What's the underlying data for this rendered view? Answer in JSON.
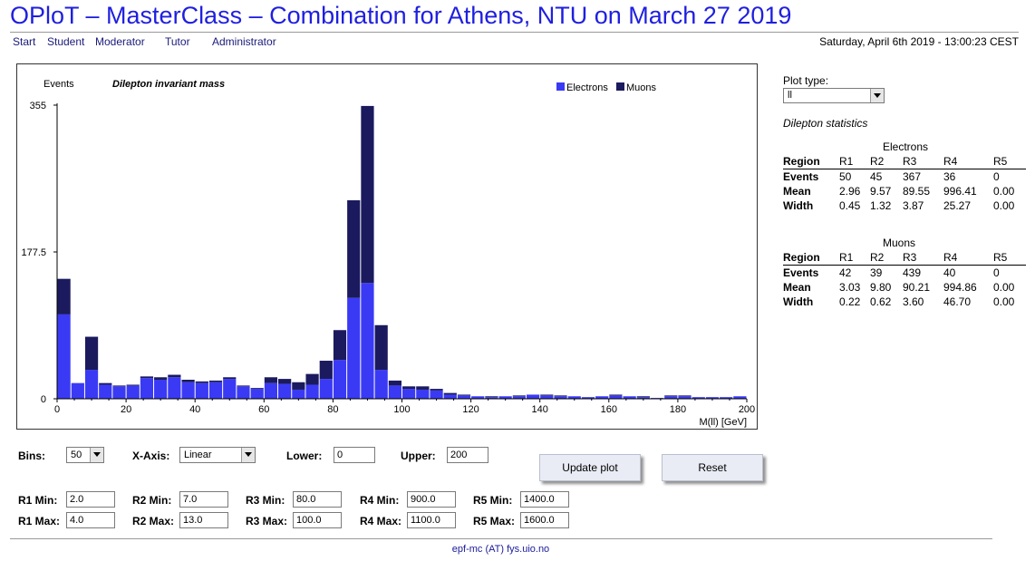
{
  "header": {
    "title": "OPloT – MasterClass – Combination for Athens, NTU on March 27 2019",
    "nav": [
      "Start",
      "Student",
      "Moderator",
      "Tutor",
      "Administrator"
    ],
    "datetime": "Saturday, April 6th 2019 - 13:00:23 CEST"
  },
  "chart_data": {
    "type": "bar",
    "stacked": true,
    "title": "Dilepton invariant mass",
    "ylabel": "Events",
    "xlabel": "M(ll) [GeV]",
    "x_bin_starts": [
      0,
      4,
      8,
      12,
      16,
      20,
      24,
      28,
      32,
      36,
      40,
      44,
      48,
      52,
      56,
      60,
      64,
      68,
      72,
      76,
      80,
      84,
      88,
      92,
      96,
      100,
      104,
      108,
      112,
      116,
      120,
      124,
      128,
      132,
      136,
      140,
      144,
      148,
      152,
      156,
      160,
      164,
      168,
      172,
      176,
      180,
      184,
      188,
      192,
      196
    ],
    "bin_width": 4,
    "xlim": [
      0,
      200
    ],
    "ylim": [
      0,
      355
    ],
    "x_ticks": [
      "0",
      "20",
      "40",
      "60",
      "80",
      "100",
      "120",
      "140",
      "160",
      "180",
      "200"
    ],
    "y_ticks": [
      "0",
      "177.5",
      "355"
    ],
    "legend_position": "top-right",
    "series": [
      {
        "name": "Electrons",
        "color": "#3a3af5",
        "values": [
          102,
          19,
          35,
          17,
          15,
          16,
          25,
          23,
          26,
          20,
          19,
          20,
          24,
          15,
          12,
          19,
          18,
          11,
          17,
          24,
          47,
          122,
          140,
          35,
          16,
          12,
          11,
          10,
          5,
          4,
          3,
          2,
          3,
          3,
          5,
          4,
          3,
          3,
          2,
          3,
          4,
          3,
          2,
          1,
          3,
          3,
          2,
          2,
          2,
          3
        ]
      },
      {
        "name": "Muons",
        "color": "#1b1a5e",
        "values": [
          43,
          0,
          40,
          2,
          1,
          1,
          2,
          3,
          3,
          3,
          2,
          2,
          2,
          1,
          1,
          7,
          6,
          9,
          13,
          22,
          36,
          118,
          214,
          54,
          6,
          3,
          4,
          2,
          2,
          1,
          0,
          1,
          0,
          1,
          0,
          1,
          1,
          0,
          0,
          0,
          1,
          0,
          1,
          0,
          1,
          1,
          0,
          0,
          0,
          0
        ]
      }
    ]
  },
  "plot_type": {
    "label": "Plot type:",
    "value": "ll"
  },
  "stats": {
    "heading": "Dilepton statistics",
    "header_row": [
      "Region",
      "R1",
      "R2",
      "R3",
      "R4",
      "R5"
    ],
    "electrons": {
      "caption": "Electrons",
      "rows": [
        [
          "Events",
          "50",
          "45",
          "367",
          "36",
          "0"
        ],
        [
          "Mean",
          "2.96",
          "9.57",
          "89.55",
          "996.41",
          "0.00"
        ],
        [
          "Width",
          "0.45",
          "1.32",
          "3.87",
          "25.27",
          "0.00"
        ]
      ]
    },
    "muons": {
      "caption": "Muons",
      "rows": [
        [
          "Events",
          "42",
          "39",
          "439",
          "40",
          "0"
        ],
        [
          "Mean",
          "3.03",
          "9.80",
          "90.21",
          "994.86",
          "0.00"
        ],
        [
          "Width",
          "0.22",
          "0.62",
          "3.60",
          "46.70",
          "0.00"
        ]
      ]
    }
  },
  "controls": {
    "bins_label": "Bins:",
    "bins_value": "50",
    "xaxis_label": "X-Axis:",
    "xaxis_value": "Linear",
    "lower_label": "Lower:",
    "lower_value": "0",
    "upper_label": "Upper:",
    "upper_value": "200",
    "update_label": "Update plot",
    "reset_label": "Reset",
    "regions": [
      {
        "min_label": "R1 Min:",
        "min": "2.0",
        "max_label": "R1 Max:",
        "max": "4.0"
      },
      {
        "min_label": "R2 Min:",
        "min": "7.0",
        "max_label": "R2 Max:",
        "max": "13.0"
      },
      {
        "min_label": "R3 Min:",
        "min": "80.0",
        "max_label": "R3 Max:",
        "max": "100.0"
      },
      {
        "min_label": "R4 Min:",
        "min": "900.0",
        "max_label": "R4 Max:",
        "max": "1100.0"
      },
      {
        "min_label": "R5 Min:",
        "min": "1400.0",
        "max_label": "R5 Max:",
        "max": "1600.0"
      }
    ]
  },
  "footer": {
    "contact": "epf-mc (AT) fys.uio.no"
  }
}
